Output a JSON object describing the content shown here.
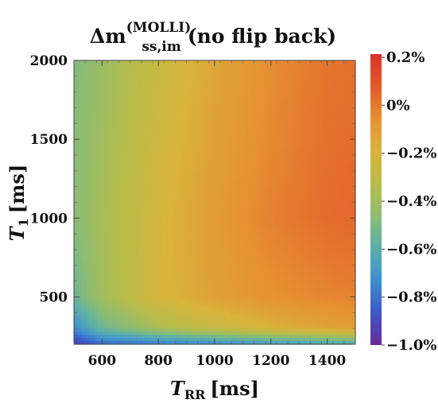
{
  "chart_data": {
    "type": "heatmap",
    "title": {
      "delta": "Δ",
      "symbol": "m",
      "superscript": "(MOLLI)",
      "subscript": "ss,im",
      "suffix": "(no flip back)"
    },
    "xlabel": {
      "var": "T",
      "sub": "RR",
      "unit": "[ms]"
    },
    "ylabel": {
      "var": "T",
      "sub": "1",
      "unit": "[ms]"
    },
    "x_ticks": [
      "600",
      "800",
      "1000",
      "1200",
      "1400"
    ],
    "x_tick_values": [
      600,
      800,
      1000,
      1200,
      1400
    ],
    "y_ticks": [
      "500",
      "1000",
      "1500",
      "2000"
    ],
    "y_tick_values": [
      500,
      1000,
      1500,
      2000
    ],
    "xlim": [
      500,
      1500
    ],
    "ylim": [
      200,
      2000
    ],
    "colorbar": {
      "labels": [
        "0.2%",
        "0%",
        "−0.2%",
        "−0.4%",
        "−0.6%",
        "−0.8%",
        "−1.0%"
      ],
      "values": [
        0.2,
        0.0,
        -0.2,
        -0.4,
        -0.6,
        -0.8,
        -1.0
      ],
      "range": [
        -1.0,
        0.2
      ]
    },
    "colormap": [
      "#6a2a9a",
      "#3c56c8",
      "#3e8fd0",
      "#5aafaa",
      "#8cbd72",
      "#b8bd4a",
      "#d9b33c",
      "#e69132",
      "#e3582a",
      "#d8352a"
    ],
    "value_estimates": {
      "t_rr": [
        500,
        600,
        800,
        1000,
        1200,
        1400,
        1500
      ],
      "t1": [
        200,
        300,
        500,
        1000,
        1500,
        2000
      ],
      "values": [
        [
          -0.95,
          -0.82,
          -0.78,
          -0.74,
          -0.7,
          -0.66,
          -0.64
        ],
        [
          -0.75,
          -0.55,
          -0.38,
          -0.28,
          -0.2,
          -0.14,
          -0.12
        ],
        [
          -0.55,
          -0.4,
          -0.22,
          -0.13,
          -0.07,
          -0.04,
          -0.03
        ],
        [
          -0.48,
          -0.38,
          -0.22,
          -0.11,
          -0.03,
          0.02,
          0.03
        ],
        [
          -0.48,
          -0.4,
          -0.25,
          -0.13,
          -0.05,
          0.01,
          0.02
        ],
        [
          -0.5,
          -0.42,
          -0.27,
          -0.15,
          -0.06,
          0.0,
          0.01
        ]
      ]
    }
  }
}
